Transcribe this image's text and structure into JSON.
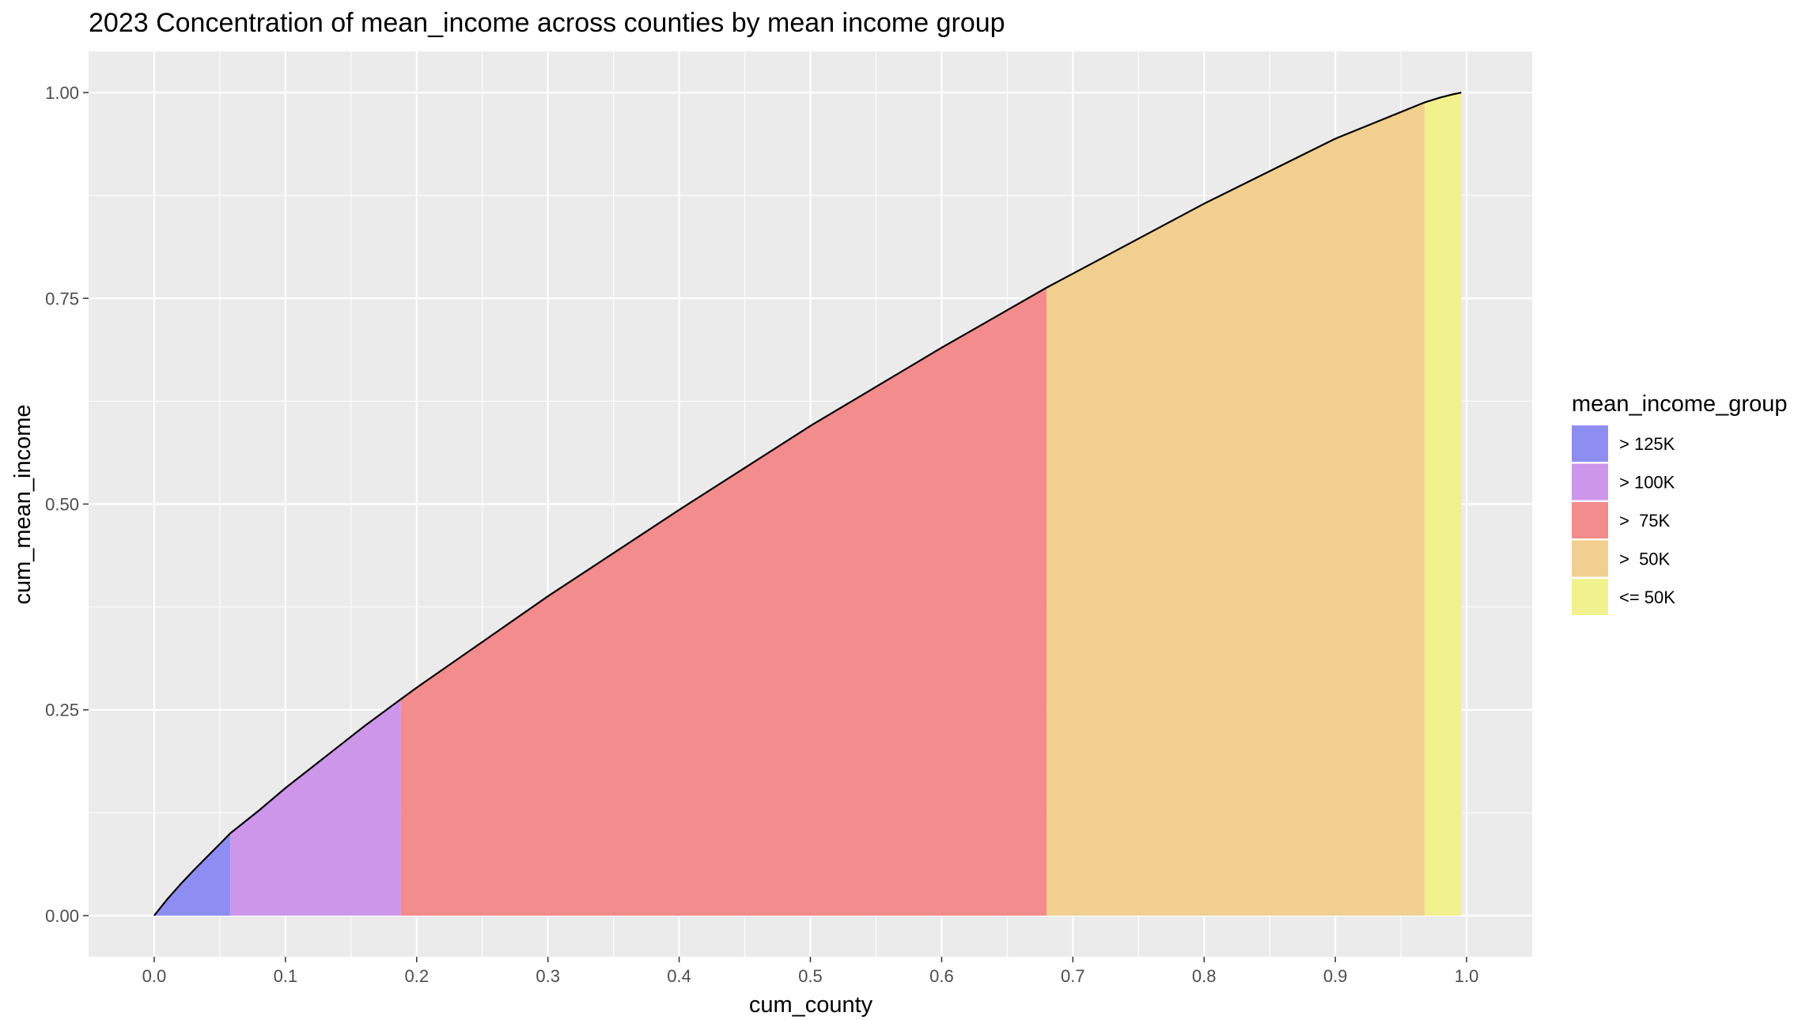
{
  "chart_data": {
    "type": "area",
    "title": "2023 Concentration of mean_income across counties by mean income group",
    "xlabel": "cum_county",
    "ylabel": "cum_mean_income",
    "xlim": [
      -0.05,
      1.05
    ],
    "ylim": [
      -0.05,
      1.05
    ],
    "x_ticks": [
      "0.0",
      "0.1",
      "0.2",
      "0.3",
      "0.4",
      "0.5",
      "0.6",
      "0.7",
      "0.8",
      "0.9",
      "1.0"
    ],
    "y_ticks": [
      "0.00",
      "0.25",
      "0.50",
      "0.75",
      "1.00"
    ],
    "grid": true,
    "legend_position": "right",
    "legend_title": "mean_income_group",
    "series": [
      {
        "name": "> 125K",
        "color": "#8e8ef2",
        "x": [
          0.0,
          0.01,
          0.02,
          0.03,
          0.04,
          0.05,
          0.058
        ],
        "y": [
          0.0,
          0.02,
          0.038,
          0.055,
          0.071,
          0.087,
          0.1
        ]
      },
      {
        "name": "> 100K",
        "color": "#cd96eb",
        "x": [
          0.058,
          0.08,
          0.1,
          0.12,
          0.14,
          0.16,
          0.188
        ],
        "y": [
          0.1,
          0.128,
          0.155,
          0.18,
          0.205,
          0.23,
          0.263
        ]
      },
      {
        "name": ">  75K",
        "color": "#f38c8c",
        "x": [
          0.188,
          0.2,
          0.3,
          0.4,
          0.5,
          0.6,
          0.68
        ],
        "y": [
          0.263,
          0.277,
          0.388,
          0.493,
          0.595,
          0.69,
          0.763
        ]
      },
      {
        "name": ">  50K",
        "color": "#f1cf8e",
        "x": [
          0.68,
          0.7,
          0.8,
          0.9,
          0.968
        ],
        "y": [
          0.763,
          0.78,
          0.865,
          0.944,
          0.988
        ]
      },
      {
        "name": "<= 50K",
        "color": "#f1f28e",
        "x": [
          0.968,
          0.98,
          0.99,
          0.996
        ],
        "y": [
          0.988,
          0.994,
          0.998,
          1.0
        ]
      }
    ]
  }
}
